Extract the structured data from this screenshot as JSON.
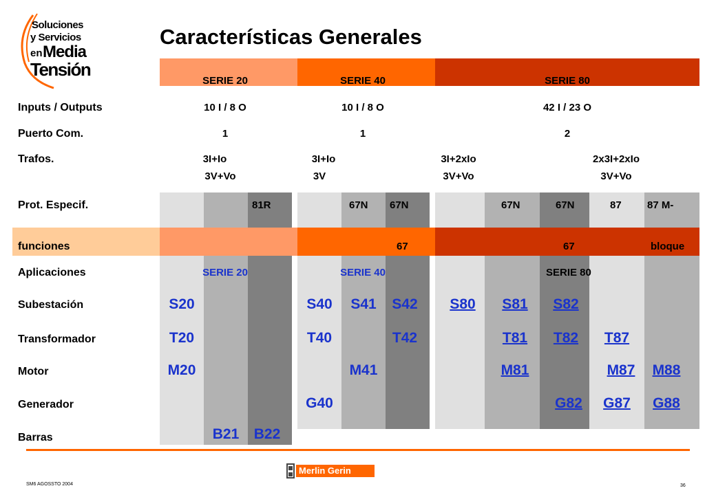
{
  "logo": {
    "line1": "Soluciones",
    "line2": "y Servicios",
    "line3a": "en",
    "line3b": "Media",
    "line4": "Tensión"
  },
  "title": "Características Generales",
  "headers": {
    "s20": "SERIE 20",
    "s40": "SERIE 40",
    "s80": "SERIE 80"
  },
  "rows": {
    "io": {
      "label": "Inputs / Outputs",
      "s20": "10 I / 8 O",
      "s40": "10 I / 8 O",
      "s80": "42 I / 23 O"
    },
    "com": {
      "label": "Puerto Com.",
      "s20": "1",
      "s40": "1",
      "s80": "2"
    },
    "trafos": {
      "label": "Trafos.",
      "a1": "3I+Io",
      "a2": "3V+Vo",
      "b1": "3I+Io",
      "b2": "3V",
      "c1": "3I+2xIo",
      "c2": "3V+Vo",
      "d1": "2x3I+2xIo",
      "d2": "3V+Vo"
    },
    "prot": {
      "label": "Prot. Especif.",
      "s22": "81R",
      "s41": "67N",
      "s42": "67N",
      "s81": "67N",
      "s82": "67N",
      "s87": "87",
      "s88": "87 M-"
    },
    "func": {
      "label": "funciones",
      "s42": "67",
      "s82": "67",
      "s88": "bloque"
    },
    "apps": {
      "label": "Aplicaciones",
      "s20": "SERIE 20",
      "s40": "SERIE 40",
      "s80": "SERIE 80"
    },
    "sub": {
      "label": "Subestación",
      "c1": "S20",
      "c4": "S40",
      "c5": "S41",
      "c6": "S42",
      "c7": "S80",
      "c8": "S81",
      "c9": "S82"
    },
    "trans": {
      "label": "Transformador",
      "c1": "T20",
      "c4": "T40",
      "c6": "T42",
      "c8": "T81",
      "c9": "T82",
      "c10": "T87"
    },
    "motor": {
      "label": "Motor",
      "c1": "M20",
      "c5": "M41",
      "c8": "M81",
      "c10": "M87",
      "c11": "M88"
    },
    "gen": {
      "label": "Generador",
      "c4": "G40",
      "c9": "G82",
      "c10": "G87",
      "c11": "G88"
    },
    "barras": {
      "label": "Barras",
      "c2": "B21",
      "c3": "B22"
    }
  },
  "footer": {
    "left": "SM6 AGOSSTO 2004",
    "brand": "Merlin Gerin",
    "page": "36"
  },
  "colors": {
    "s20_header": "#ff9966",
    "s40_header": "#ff6600",
    "s80_header": "#cc3300",
    "func_band": "#ffcc99",
    "light": "#e0e0e0",
    "mid": "#b2b2b2",
    "dark": "#808080",
    "link": "#1a33cc",
    "rule": "#ff6600"
  }
}
